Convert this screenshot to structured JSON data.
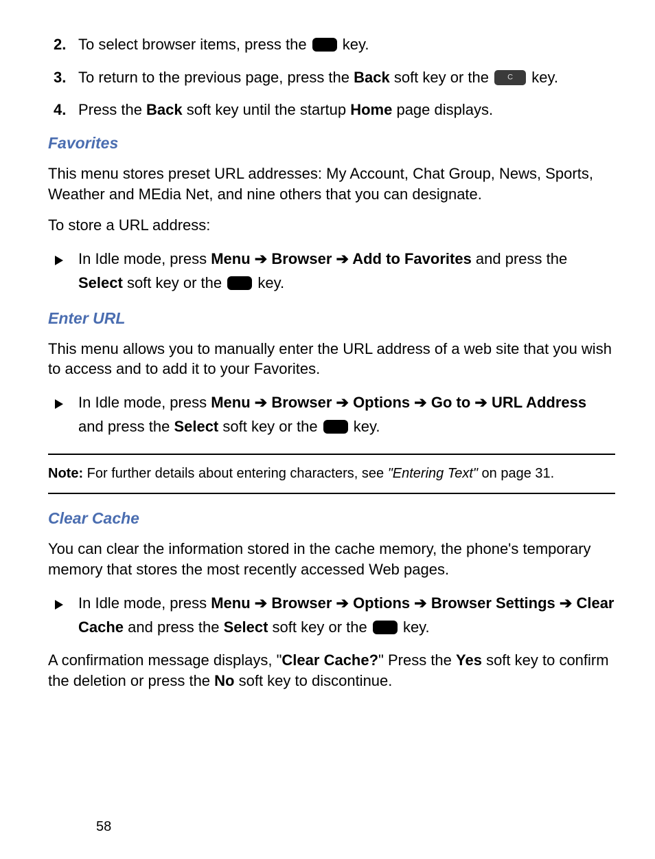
{
  "steps": {
    "s2": {
      "num": "2.",
      "pre": "To select browser items, press the ",
      "post": " key."
    },
    "s3": {
      "num": "3.",
      "pre": "To return to the previous page, press the ",
      "back": "Back",
      "mid": " soft key or the ",
      "post": " key."
    },
    "s4": {
      "num": "4.",
      "pre": "Press the ",
      "back": "Back",
      "mid": " soft key until the startup ",
      "home": "Home",
      "post": " page displays."
    }
  },
  "favorites": {
    "heading": "Favorites",
    "p1": "This menu stores preset URL addresses: My Account, Chat Group, News, Sports, Weather and MEdia Net, and nine others that you can designate.",
    "p2": "To store a URL address:",
    "b1_pre": "In Idle mode, press ",
    "b1_menu": "Menu",
    "b1_a": " ➔ ",
    "b1_browser": "Browser",
    "b1_b": " ➔ ",
    "b1_addfav": "Add to Favorites",
    "b1_mid": " and press the ",
    "b1_select": "Select",
    "b1_post1": " soft key or the ",
    "b1_post2": " key."
  },
  "enterurl": {
    "heading": "Enter URL",
    "p1": "This menu allows you to manually enter the URL address of a web site that you wish to access and to add it to your Favorites.",
    "b1_pre": "In Idle mode, press ",
    "b1_menu": "Menu",
    "b1_browser": "Browser",
    "b1_options": "Options",
    "b1_goto": "Go to",
    "b1_url": "URL Address",
    "b1_sep": " ➔ ",
    "b1_mid": " and press the ",
    "b1_select": "Select",
    "b1_post1": " soft key or the ",
    "b1_post2": " key."
  },
  "note": {
    "label": "Note:",
    "text1": " For further details about entering characters, see ",
    "quote": "\"Entering Text\"",
    "text2": " on page 31."
  },
  "clearcache": {
    "heading": "Clear Cache",
    "p1": "You can clear the information stored in the cache memory, the phone's temporary memory that stores the most recently accessed Web pages.",
    "b1_pre": "In Idle mode, press ",
    "b1_menu": "Menu",
    "b1_browser": "Browser",
    "b1_options": "Options",
    "b1_bs": "Browser Settings",
    "b1_cc": "Clear Cache",
    "b1_sep": " ➔ ",
    "b1_mid": " and press the ",
    "b1_select": "Select",
    "b1_post1": " soft key or the ",
    "b1_post2": " key.",
    "p2_a": "A confirmation message displays, \"",
    "p2_cc": "Clear Cache?",
    "p2_b": "\" Press the ",
    "p2_yes": "Yes",
    "p2_c": " soft key to confirm the deletion or press the ",
    "p2_no": "No",
    "p2_d": " soft key to discontinue."
  },
  "page": "58"
}
